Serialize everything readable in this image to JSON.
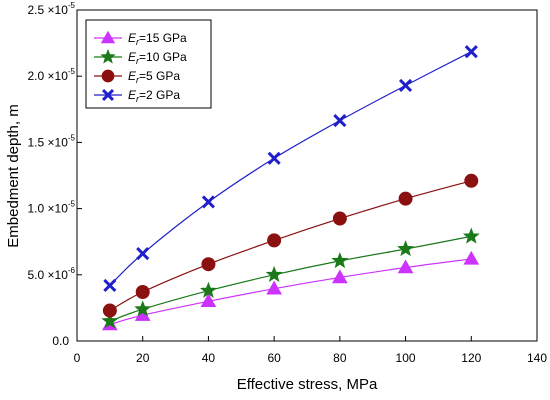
{
  "chart_data": {
    "type": "line",
    "xlabel": "Effective stress, MPa",
    "ylabel": "Embedment depth, m",
    "xlim": [
      0,
      140
    ],
    "ylim": [
      0,
      2.5e-05
    ],
    "x_ticks": [
      {
        "value": 0,
        "label": "0"
      },
      {
        "value": 20,
        "label": "20"
      },
      {
        "value": 40,
        "label": "40"
      },
      {
        "value": 60,
        "label": "60"
      },
      {
        "value": 80,
        "label": "80"
      },
      {
        "value": 100,
        "label": "100"
      },
      {
        "value": 120,
        "label": "120"
      },
      {
        "value": 140,
        "label": "140"
      }
    ],
    "y_ticks": [
      {
        "value": 0,
        "mantissa": "0.0",
        "exponent": ""
      },
      {
        "value": 5e-06,
        "mantissa": "5.0 ×10",
        "exponent": "-6"
      },
      {
        "value": 1e-05,
        "mantissa": "1.0 ×10",
        "exponent": "-5"
      },
      {
        "value": 1.5e-05,
        "mantissa": "1.5 ×10",
        "exponent": "-5"
      },
      {
        "value": 2e-05,
        "mantissa": "2.0 ×10",
        "exponent": "-5"
      },
      {
        "value": 2.5e-05,
        "mantissa": "2.5 ×10",
        "exponent": "-5"
      }
    ],
    "legend_position": "top-left",
    "series": [
      {
        "name_main": "E",
        "name_sub": "r",
        "name_rest": "=15 GPa",
        "color": "#cc33ff",
        "marker": "triangle",
        "x": [
          10,
          20,
          40,
          60,
          80,
          100,
          120
        ],
        "y": [
          1.25e-06,
          1.95e-06,
          3e-06,
          3.95e-06,
          4.8e-06,
          5.55e-06,
          6.2e-06
        ]
      },
      {
        "name_main": "E",
        "name_sub": "r",
        "name_rest": "=10 GPa",
        "color": "#1a7a1a",
        "marker": "star",
        "x": [
          10,
          20,
          40,
          60,
          80,
          100,
          120
        ],
        "y": [
          1.5e-06,
          2.4e-06,
          3.8e-06,
          5e-06,
          6.05e-06,
          6.95e-06,
          7.9e-06
        ]
      },
      {
        "name_main": "E",
        "name_sub": "r",
        "name_rest": "=5 GPa",
        "color": "#8b1010",
        "marker": "circle",
        "x": [
          10,
          20,
          40,
          60,
          80,
          100,
          120
        ],
        "y": [
          2.3e-06,
          3.7e-06,
          5.8e-06,
          7.6e-06,
          9.25e-06,
          1.075e-05,
          1.21e-05
        ]
      },
      {
        "name_main": "E",
        "name_sub": "r",
        "name_rest": "=2 GPa",
        "color": "#1f1fcc",
        "marker": "x",
        "x": [
          10,
          20,
          40,
          60,
          80,
          100,
          120
        ],
        "y": [
          4.2e-06,
          6.6e-06,
          1.05e-05,
          1.38e-05,
          1.665e-05,
          1.93e-05,
          2.185e-05
        ]
      }
    ]
  }
}
